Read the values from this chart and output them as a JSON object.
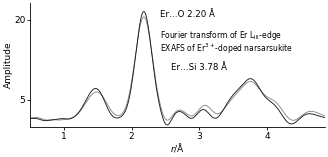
{
  "title": "",
  "xlabel": "r/Å",
  "ylabel": "Amplitude",
  "xlim": [
    0.5,
    4.85
  ],
  "ylim": [
    0,
    23
  ],
  "yticks": [
    5,
    20
  ],
  "xticks": [
    1,
    2,
    3,
    4
  ],
  "background_color": "#ffffff",
  "line_color_dark": "#1a1a1a",
  "line_color_gray": "#888888"
}
